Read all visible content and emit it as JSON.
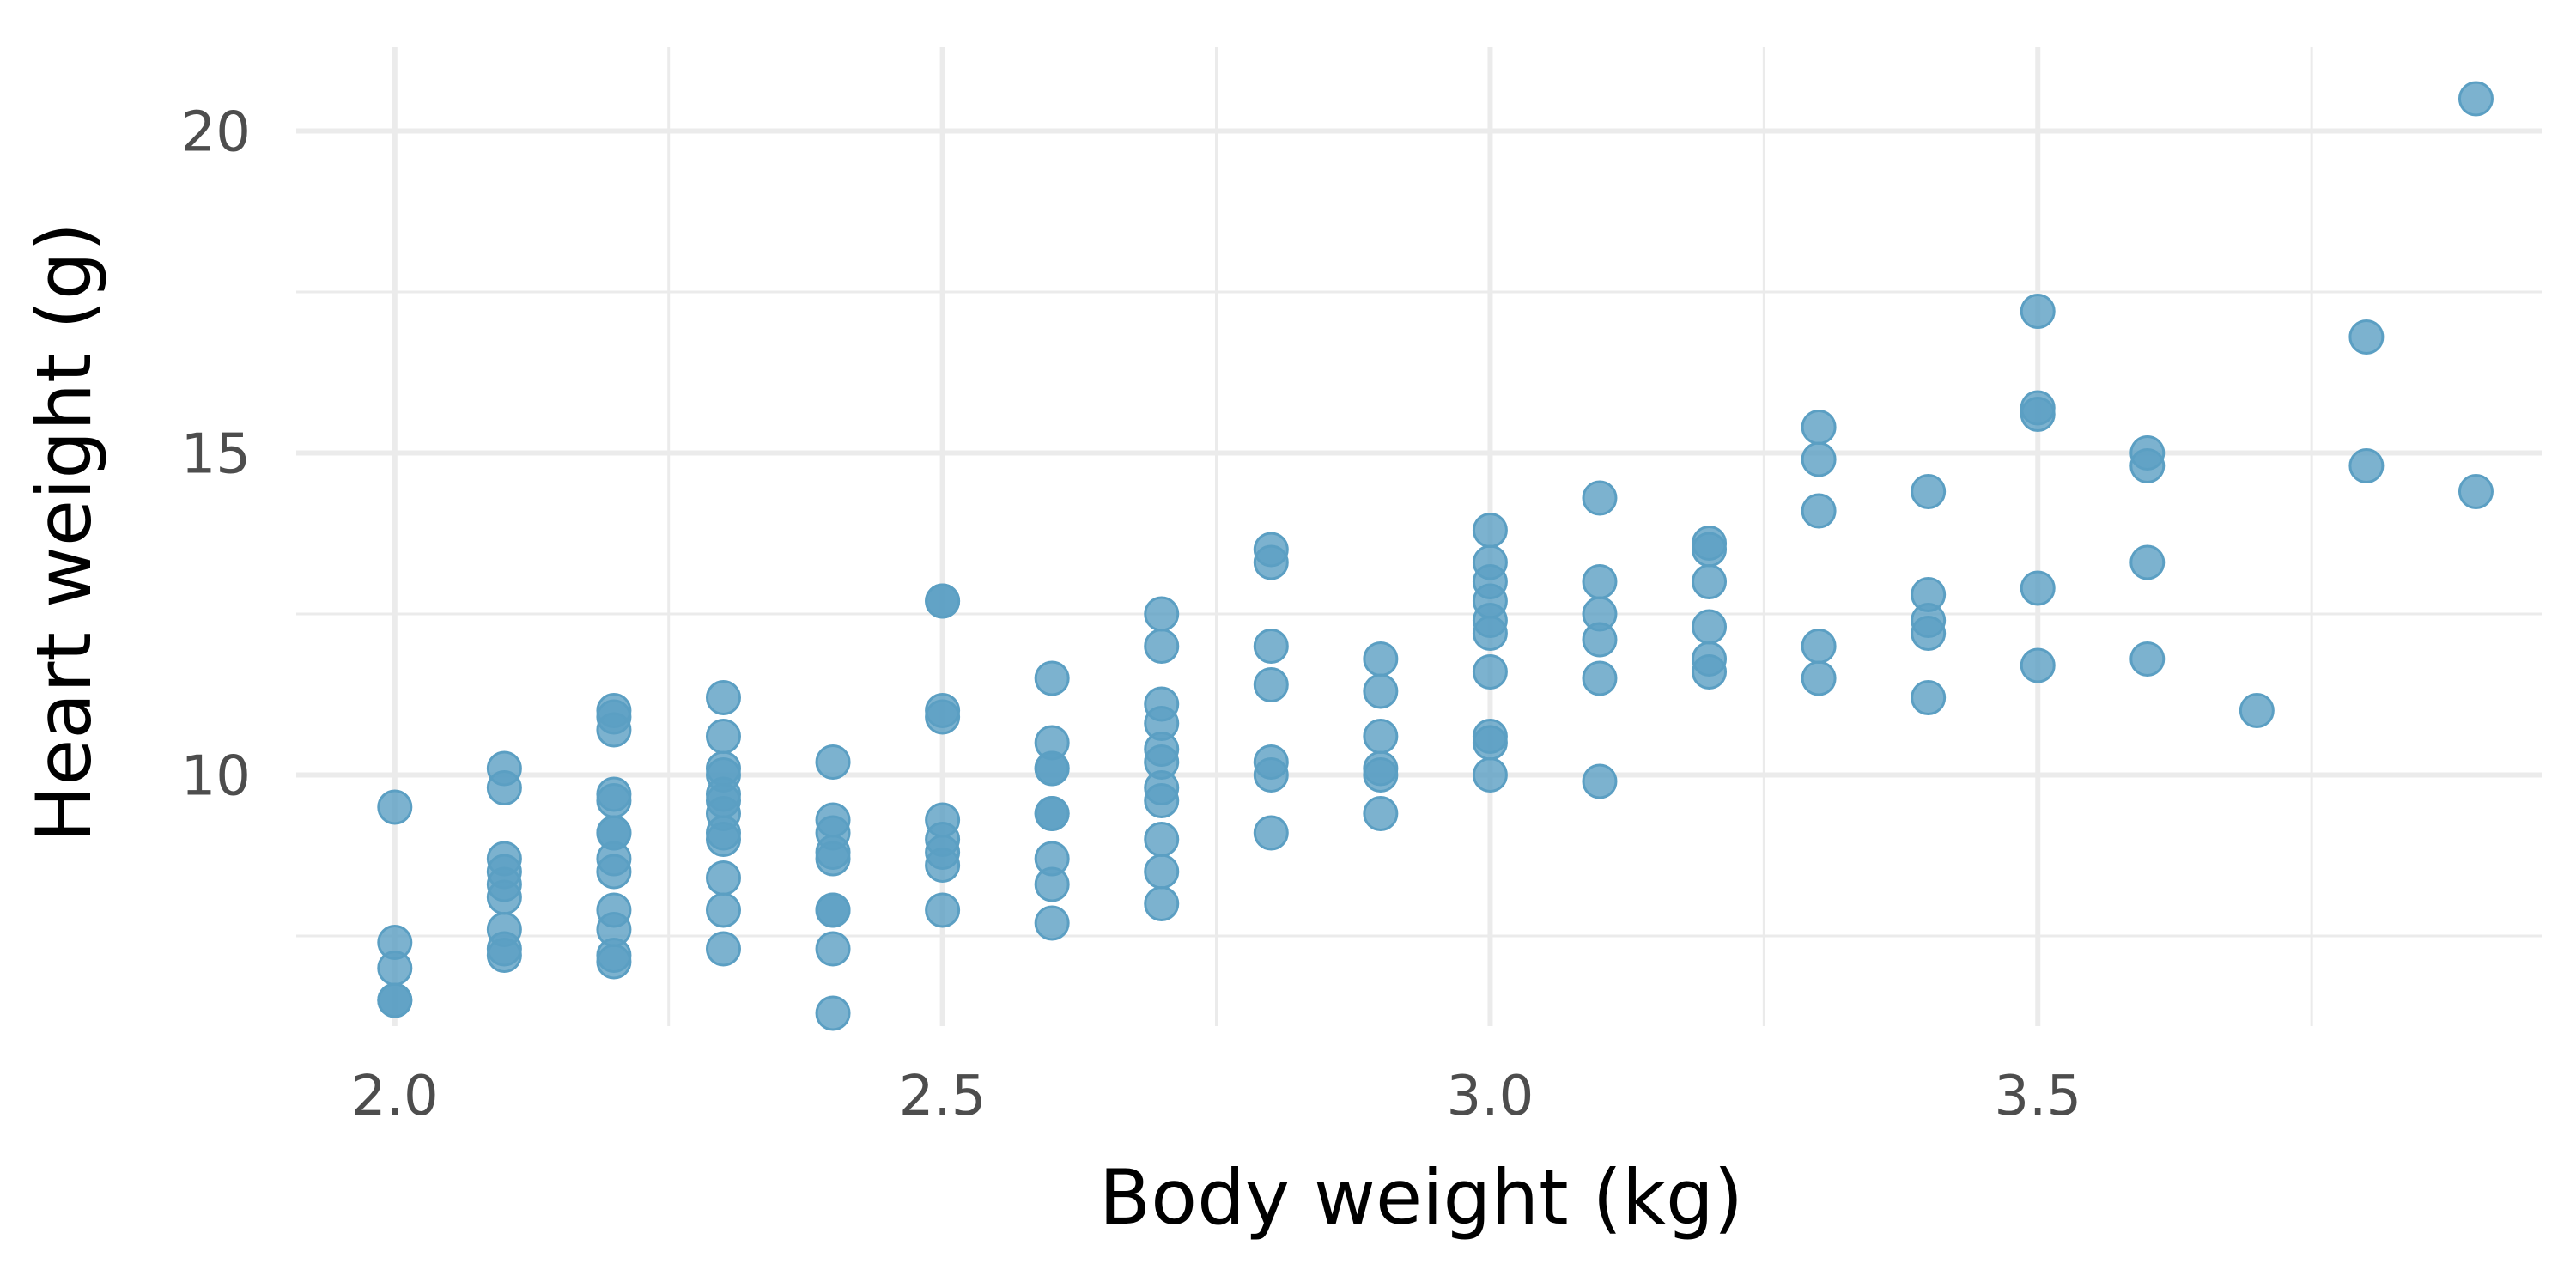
{
  "chart_data": {
    "type": "scatter",
    "xlabel": "Body weight (kg)",
    "ylabel": "Heart weight (g)",
    "xlim": [
      1.91,
      3.96
    ],
    "ylim": [
      6.1,
      21.3
    ],
    "x_ticks": [
      2.0,
      2.5,
      3.0,
      3.5
    ],
    "x_tick_labels": [
      "2.0",
      "2.5",
      "3.0",
      "3.5"
    ],
    "x_minor_ticks": [
      2.25,
      2.75,
      3.25,
      3.75
    ],
    "y_ticks": [
      10,
      15,
      20
    ],
    "y_tick_labels": [
      "10",
      "15",
      "20"
    ],
    "y_minor_ticks": [
      7.5,
      12.5,
      17.5
    ],
    "grid": true,
    "point_color": "#5b9fc3",
    "points": [
      {
        "x": 2.0,
        "y": 9.5
      },
      {
        "x": 2.0,
        "y": 7.4
      },
      {
        "x": 2.0,
        "y": 7.0
      },
      {
        "x": 2.0,
        "y": 6.5
      },
      {
        "x": 2.0,
        "y": 6.5
      },
      {
        "x": 2.1,
        "y": 10.1
      },
      {
        "x": 2.1,
        "y": 9.8
      },
      {
        "x": 2.1,
        "y": 8.7
      },
      {
        "x": 2.1,
        "y": 8.5
      },
      {
        "x": 2.1,
        "y": 8.3
      },
      {
        "x": 2.1,
        "y": 8.1
      },
      {
        "x": 2.1,
        "y": 7.6
      },
      {
        "x": 2.1,
        "y": 7.3
      },
      {
        "x": 2.1,
        "y": 7.2
      },
      {
        "x": 2.2,
        "y": 11.0
      },
      {
        "x": 2.2,
        "y": 10.9
      },
      {
        "x": 2.2,
        "y": 10.7
      },
      {
        "x": 2.2,
        "y": 9.7
      },
      {
        "x": 2.2,
        "y": 9.6
      },
      {
        "x": 2.2,
        "y": 9.1
      },
      {
        "x": 2.2,
        "y": 9.1
      },
      {
        "x": 2.2,
        "y": 8.7
      },
      {
        "x": 2.2,
        "y": 8.5
      },
      {
        "x": 2.2,
        "y": 7.9
      },
      {
        "x": 2.2,
        "y": 7.6
      },
      {
        "x": 2.2,
        "y": 7.2
      },
      {
        "x": 2.2,
        "y": 7.1
      },
      {
        "x": 2.3,
        "y": 11.2
      },
      {
        "x": 2.3,
        "y": 10.6
      },
      {
        "x": 2.3,
        "y": 10.1
      },
      {
        "x": 2.3,
        "y": 10.0
      },
      {
        "x": 2.3,
        "y": 9.7
      },
      {
        "x": 2.3,
        "y": 9.6
      },
      {
        "x": 2.3,
        "y": 9.4
      },
      {
        "x": 2.3,
        "y": 9.1
      },
      {
        "x": 2.3,
        "y": 9.0
      },
      {
        "x": 2.3,
        "y": 8.4
      },
      {
        "x": 2.3,
        "y": 7.9
      },
      {
        "x": 2.3,
        "y": 7.3
      },
      {
        "x": 2.4,
        "y": 10.2
      },
      {
        "x": 2.4,
        "y": 9.3
      },
      {
        "x": 2.4,
        "y": 9.1
      },
      {
        "x": 2.4,
        "y": 8.8
      },
      {
        "x": 2.4,
        "y": 8.7
      },
      {
        "x": 2.4,
        "y": 7.9
      },
      {
        "x": 2.4,
        "y": 7.9
      },
      {
        "x": 2.4,
        "y": 7.3
      },
      {
        "x": 2.4,
        "y": 6.3
      },
      {
        "x": 2.5,
        "y": 12.7
      },
      {
        "x": 2.5,
        "y": 12.7
      },
      {
        "x": 2.5,
        "y": 11.0
      },
      {
        "x": 2.5,
        "y": 10.9
      },
      {
        "x": 2.5,
        "y": 9.3
      },
      {
        "x": 2.5,
        "y": 9.0
      },
      {
        "x": 2.5,
        "y": 8.8
      },
      {
        "x": 2.5,
        "y": 8.6
      },
      {
        "x": 2.5,
        "y": 7.9
      },
      {
        "x": 2.6,
        "y": 11.5
      },
      {
        "x": 2.6,
        "y": 10.5
      },
      {
        "x": 2.6,
        "y": 10.1
      },
      {
        "x": 2.6,
        "y": 10.1
      },
      {
        "x": 2.6,
        "y": 9.4
      },
      {
        "x": 2.6,
        "y": 9.4
      },
      {
        "x": 2.6,
        "y": 8.7
      },
      {
        "x": 2.6,
        "y": 8.3
      },
      {
        "x": 2.6,
        "y": 7.7
      },
      {
        "x": 2.7,
        "y": 12.5
      },
      {
        "x": 2.7,
        "y": 12.0
      },
      {
        "x": 2.7,
        "y": 11.1
      },
      {
        "x": 2.7,
        "y": 10.8
      },
      {
        "x": 2.7,
        "y": 10.4
      },
      {
        "x": 2.7,
        "y": 10.2
      },
      {
        "x": 2.7,
        "y": 9.8
      },
      {
        "x": 2.7,
        "y": 9.6
      },
      {
        "x": 2.7,
        "y": 9.0
      },
      {
        "x": 2.7,
        "y": 8.5
      },
      {
        "x": 2.7,
        "y": 8.0
      },
      {
        "x": 2.8,
        "y": 13.5
      },
      {
        "x": 2.8,
        "y": 13.3
      },
      {
        "x": 2.8,
        "y": 12.0
      },
      {
        "x": 2.8,
        "y": 11.4
      },
      {
        "x": 2.8,
        "y": 10.2
      },
      {
        "x": 2.8,
        "y": 10.0
      },
      {
        "x": 2.8,
        "y": 9.1
      },
      {
        "x": 2.9,
        "y": 11.8
      },
      {
        "x": 2.9,
        "y": 11.3
      },
      {
        "x": 2.9,
        "y": 10.6
      },
      {
        "x": 2.9,
        "y": 10.1
      },
      {
        "x": 2.9,
        "y": 10.0
      },
      {
        "x": 2.9,
        "y": 9.4
      },
      {
        "x": 3.0,
        "y": 13.8
      },
      {
        "x": 3.0,
        "y": 13.3
      },
      {
        "x": 3.0,
        "y": 13.0
      },
      {
        "x": 3.0,
        "y": 12.7
      },
      {
        "x": 3.0,
        "y": 12.4
      },
      {
        "x": 3.0,
        "y": 12.2
      },
      {
        "x": 3.0,
        "y": 11.6
      },
      {
        "x": 3.0,
        "y": 10.6
      },
      {
        "x": 3.0,
        "y": 10.5
      },
      {
        "x": 3.0,
        "y": 10.0
      },
      {
        "x": 3.1,
        "y": 14.3
      },
      {
        "x": 3.1,
        "y": 13.0
      },
      {
        "x": 3.1,
        "y": 12.5
      },
      {
        "x": 3.1,
        "y": 12.1
      },
      {
        "x": 3.1,
        "y": 11.5
      },
      {
        "x": 3.1,
        "y": 9.9
      },
      {
        "x": 3.2,
        "y": 13.6
      },
      {
        "x": 3.2,
        "y": 13.5
      },
      {
        "x": 3.2,
        "y": 13.0
      },
      {
        "x": 3.2,
        "y": 12.3
      },
      {
        "x": 3.2,
        "y": 11.8
      },
      {
        "x": 3.2,
        "y": 11.6
      },
      {
        "x": 3.3,
        "y": 15.4
      },
      {
        "x": 3.3,
        "y": 14.9
      },
      {
        "x": 3.3,
        "y": 14.1
      },
      {
        "x": 3.3,
        "y": 12.0
      },
      {
        "x": 3.3,
        "y": 11.5
      },
      {
        "x": 3.4,
        "y": 14.4
      },
      {
        "x": 3.4,
        "y": 12.8
      },
      {
        "x": 3.4,
        "y": 12.4
      },
      {
        "x": 3.4,
        "y": 12.2
      },
      {
        "x": 3.4,
        "y": 11.2
      },
      {
        "x": 3.5,
        "y": 17.2
      },
      {
        "x": 3.5,
        "y": 15.7
      },
      {
        "x": 3.5,
        "y": 15.6
      },
      {
        "x": 3.5,
        "y": 12.9
      },
      {
        "x": 3.5,
        "y": 11.7
      },
      {
        "x": 3.6,
        "y": 15.0
      },
      {
        "x": 3.6,
        "y": 14.8
      },
      {
        "x": 3.6,
        "y": 13.3
      },
      {
        "x": 3.6,
        "y": 11.8
      },
      {
        "x": 3.7,
        "y": 11.0
      },
      {
        "x": 3.8,
        "y": 16.8
      },
      {
        "x": 3.8,
        "y": 14.8
      },
      {
        "x": 3.9,
        "y": 20.5
      },
      {
        "x": 3.9,
        "y": 14.4
      }
    ]
  }
}
